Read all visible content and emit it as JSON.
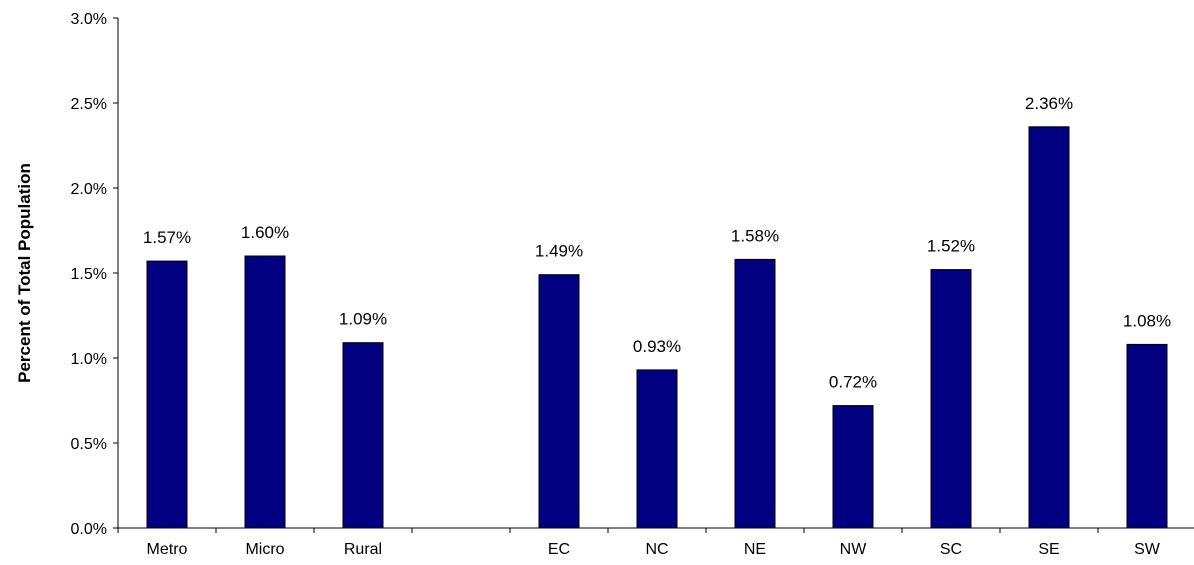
{
  "chart_data": {
    "type": "bar",
    "title": "",
    "xlabel": "",
    "ylabel": "Percent of Total Population",
    "ylim": [
      0,
      3.0
    ],
    "yticks": [
      "0.0%",
      "0.5%",
      "1.0%",
      "1.5%",
      "2.0%",
      "2.5%",
      "3.0%"
    ],
    "grid": false,
    "categories": [
      "Metro",
      "Micro",
      "Rural",
      "",
      "EC",
      "NC",
      "NE",
      "NW",
      "SC",
      "SE",
      "SW"
    ],
    "values": [
      1.57,
      1.6,
      1.09,
      null,
      1.49,
      0.93,
      1.58,
      0.72,
      1.52,
      2.36,
      1.08
    ],
    "data_labels": [
      "1.57%",
      "1.60%",
      "1.09%",
      "",
      "1.49%",
      "0.93%",
      "1.58%",
      "0.72%",
      "1.52%",
      "2.36%",
      "1.08%"
    ],
    "bar_color": "#000080",
    "bar_border_color": "#000000"
  }
}
